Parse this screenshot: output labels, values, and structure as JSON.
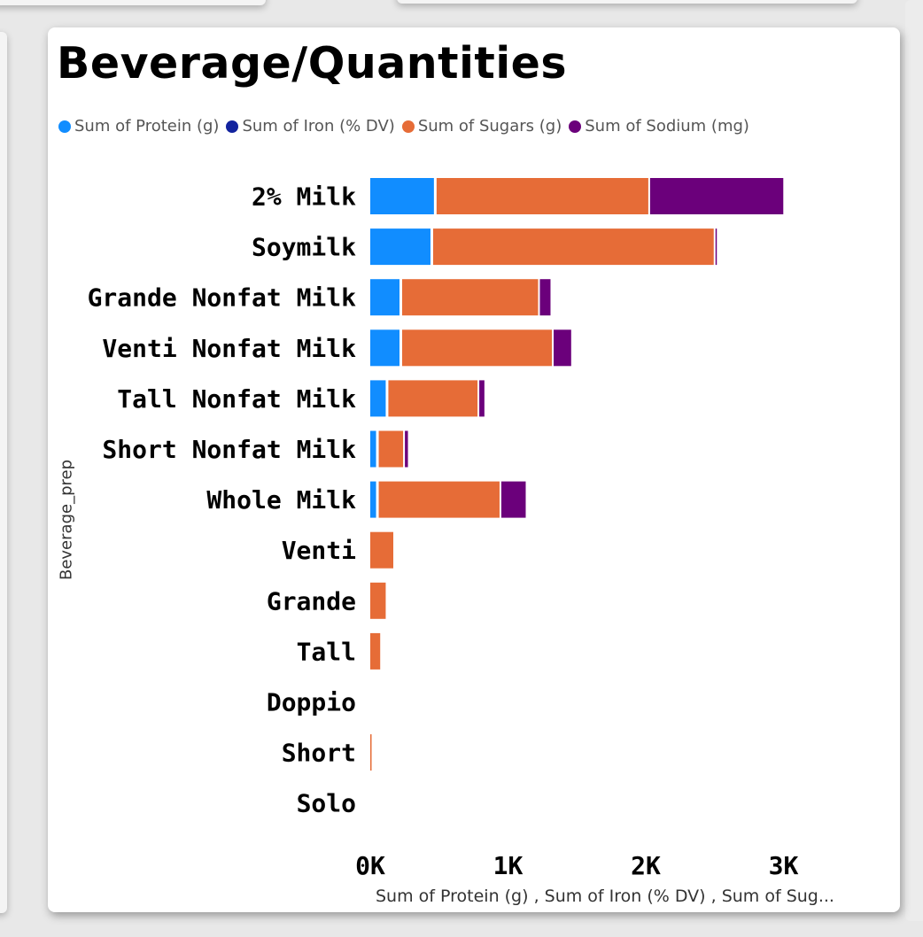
{
  "colors": {
    "protein": "#118DFF",
    "iron": "#12239E",
    "sugars": "#E66C37",
    "sodium": "#6B007B"
  },
  "chart_data": {
    "type": "bar",
    "orientation": "horizontal",
    "stacked": true,
    "title": "Beverage/Quantities",
    "ylabel": "Beverage_prep",
    "xlabel": "Sum of Protein (g) , Sum of Iron (% DV) , Sum of Sug...",
    "xlim": [
      0,
      3000
    ],
    "x_ticks": [
      "0K",
      "1K",
      "2K",
      "3K"
    ],
    "x_tick_values": [
      0,
      1000,
      2000,
      3000
    ],
    "grid": false,
    "legend_position": "top-left",
    "legend": [
      {
        "label": "Sum of  Protein (g)",
        "key": "protein"
      },
      {
        "label": "Sum of Iron (% DV)",
        "key": "iron"
      },
      {
        "label": "Sum of  Sugars (g)",
        "key": "sugars"
      },
      {
        "label": "Sum of  Sodium (mg)",
        "key": "sodium"
      }
    ],
    "categories": [
      "2% Milk",
      "Soymilk",
      "Grande Nonfat Milk",
      "Venti Nonfat Milk",
      "Tall Nonfat Milk",
      "Short Nonfat Milk",
      "Whole Milk",
      "Venti",
      "Grande",
      "Tall",
      "Doppio",
      "Short",
      "Solo"
    ],
    "series": [
      {
        "name": "Sum of  Protein (g)",
        "key": "protein",
        "values": [
          475,
          450,
          225,
          225,
          125,
          55,
          55,
          0,
          0,
          0,
          0,
          0,
          0
        ]
      },
      {
        "name": "Sum of Iron (% DV)",
        "key": "iron",
        "values": [
          0,
          0,
          0,
          0,
          0,
          0,
          0,
          0,
          0,
          0,
          0,
          0,
          0
        ]
      },
      {
        "name": "Sum of  Sugars (g)",
        "key": "sugars",
        "values": [
          1550,
          2050,
          1000,
          1100,
          660,
          190,
          890,
          180,
          125,
          85,
          0,
          10,
          0
        ]
      },
      {
        "name": "Sum of  Sodium (mg)",
        "key": "sodium",
        "values": [
          980,
          20,
          90,
          140,
          50,
          35,
          190,
          0,
          0,
          0,
          0,
          0,
          0
        ]
      }
    ]
  }
}
